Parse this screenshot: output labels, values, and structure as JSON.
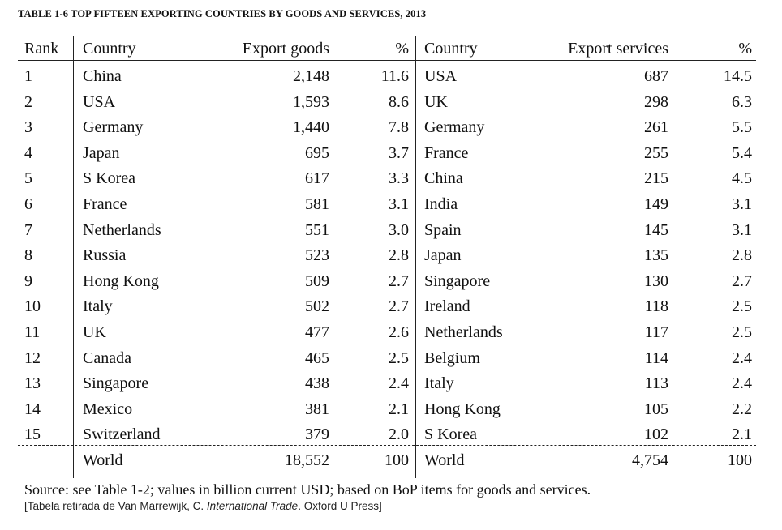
{
  "title": "TABLE 1-6 TOP FIFTEEN EXPORTING COUNTRIES BY GOODS AND SERVICES, 2013",
  "headers": {
    "rank": "Rank",
    "country_goods": "Country",
    "export_goods": "Export goods",
    "pct_goods": "%",
    "country_services": "Country",
    "export_services": "Export services",
    "pct_services": "%"
  },
  "rows": [
    {
      "rank": "1",
      "country_goods": "China",
      "export_goods": "2,148",
      "pct_goods": "11.6",
      "country_services": "USA",
      "export_services": "687",
      "pct_services": "14.5"
    },
    {
      "rank": "2",
      "country_goods": "USA",
      "export_goods": "1,593",
      "pct_goods": "8.6",
      "country_services": "UK",
      "export_services": "298",
      "pct_services": "6.3"
    },
    {
      "rank": "3",
      "country_goods": "Germany",
      "export_goods": "1,440",
      "pct_goods": "7.8",
      "country_services": "Germany",
      "export_services": "261",
      "pct_services": "5.5"
    },
    {
      "rank": "4",
      "country_goods": "Japan",
      "export_goods": "695",
      "pct_goods": "3.7",
      "country_services": "France",
      "export_services": "255",
      "pct_services": "5.4"
    },
    {
      "rank": "5",
      "country_goods": "S Korea",
      "export_goods": "617",
      "pct_goods": "3.3",
      "country_services": "China",
      "export_services": "215",
      "pct_services": "4.5"
    },
    {
      "rank": "6",
      "country_goods": "France",
      "export_goods": "581",
      "pct_goods": "3.1",
      "country_services": "India",
      "export_services": "149",
      "pct_services": "3.1"
    },
    {
      "rank": "7",
      "country_goods": "Netherlands",
      "export_goods": "551",
      "pct_goods": "3.0",
      "country_services": "Spain",
      "export_services": "145",
      "pct_services": "3.1"
    },
    {
      "rank": "8",
      "country_goods": "Russia",
      "export_goods": "523",
      "pct_goods": "2.8",
      "country_services": "Japan",
      "export_services": "135",
      "pct_services": "2.8"
    },
    {
      "rank": "9",
      "country_goods": "Hong Kong",
      "export_goods": "509",
      "pct_goods": "2.7",
      "country_services": "Singapore",
      "export_services": "130",
      "pct_services": "2.7"
    },
    {
      "rank": "10",
      "country_goods": "Italy",
      "export_goods": "502",
      "pct_goods": "2.7",
      "country_services": "Ireland",
      "export_services": "118",
      "pct_services": "2.5"
    },
    {
      "rank": "11",
      "country_goods": "UK",
      "export_goods": "477",
      "pct_goods": "2.6",
      "country_services": "Netherlands",
      "export_services": "117",
      "pct_services": "2.5"
    },
    {
      "rank": "12",
      "country_goods": "Canada",
      "export_goods": "465",
      "pct_goods": "2.5",
      "country_services": "Belgium",
      "export_services": "114",
      "pct_services": "2.4"
    },
    {
      "rank": "13",
      "country_goods": "Singapore",
      "export_goods": "438",
      "pct_goods": "2.4",
      "country_services": "Italy",
      "export_services": "113",
      "pct_services": "2.4"
    },
    {
      "rank": "14",
      "country_goods": "Mexico",
      "export_goods": "381",
      "pct_goods": "2.1",
      "country_services": "Hong Kong",
      "export_services": "105",
      "pct_services": "2.2"
    },
    {
      "rank": "15",
      "country_goods": "Switzerland",
      "export_goods": "379",
      "pct_goods": "2.0",
      "country_services": "S Korea",
      "export_services": "102",
      "pct_services": "2.1"
    }
  ],
  "world_row": {
    "country_goods": "World",
    "export_goods": "18,552",
    "pct_goods": "100",
    "country_services": "World",
    "export_services": "4,754",
    "pct_services": "100"
  },
  "source": "Source: see Table 1-2; values in billion current USD; based on BoP items for goods and services.",
  "credit": {
    "prefix": "[Tabela retirada de Van Marrewijk, C. ",
    "book": "International Trade",
    "suffix": ". Oxford U Press]"
  }
}
